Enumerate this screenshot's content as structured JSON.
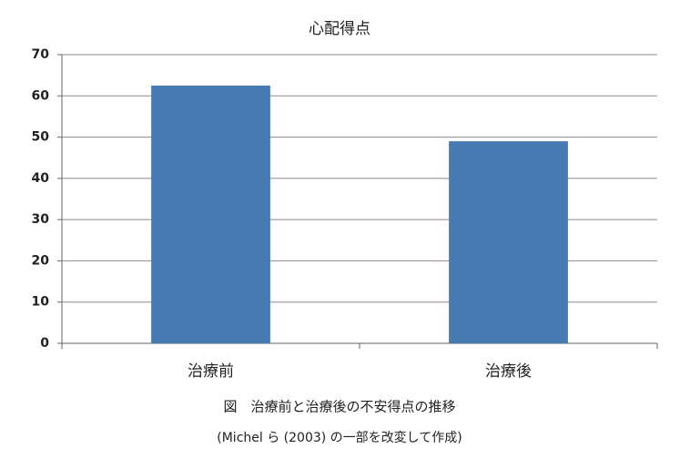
{
  "chart_data": {
    "type": "bar",
    "title": "心配得点",
    "categories": [
      "治療前",
      "治療後"
    ],
    "values": [
      62.5,
      49
    ],
    "color": "#4a7ab4",
    "ylim": [
      0,
      70
    ],
    "yticks": [
      0,
      10,
      20,
      30,
      40,
      50,
      60,
      70
    ],
    "grid": true,
    "caption": "図　治療前と治療後の不安得点の推移",
    "source": "(Michel ら (2003) の一部を改変して作成)"
  }
}
